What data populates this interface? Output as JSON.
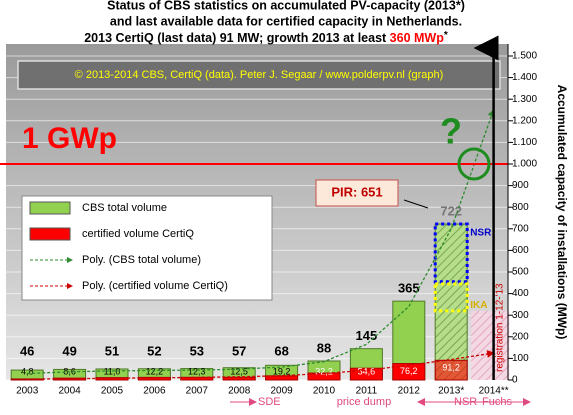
{
  "chart_data": {
    "type": "bar",
    "title_lines": [
      "Status of CBS statistics on accumulated  PV-capacity (2013*)",
      "and last available data for certified capacity in Netherlands.",
      "2013 CertiQ (last data) 91 MW; growth 2013 at least"
    ],
    "title_highlight": "360 MWp",
    "title_suffix": "*",
    "credit": "© 2013-2014 CBS, CertiQ (data). Peter J. Segaar / www.polderpv.nl (graph)",
    "y_label": "Accumulated capacity of installations (MWp)",
    "categories": [
      "2003",
      "2004",
      "2005",
      "2006",
      "2007",
      "2008",
      "2009",
      "2010",
      "2011",
      "2012",
      "2013*",
      "2014**"
    ],
    "series": [
      {
        "name": "CBS total volume",
        "color": "#92d050",
        "values": [
          46,
          49,
          51,
          52,
          53,
          57,
          68,
          88,
          145,
          365,
          722,
          null
        ]
      },
      {
        "name": "certified volume CertiQ",
        "color": "#ff0000",
        "values": [
          4.8,
          8.6,
          11.0,
          12.2,
          12.3,
          12.5,
          19.2,
          32.2,
          54.6,
          76.2,
          91.2,
          null
        ],
        "value_labels": [
          "4,8",
          "8,6",
          "11,0",
          "12,2",
          "12,3",
          "12,5",
          "19,2",
          "32,2",
          "54,6",
          "76,2",
          "91,2",
          null
        ]
      }
    ],
    "trends": [
      {
        "name": "Poly. (CBS total volume)",
        "color": "#2e8b2e",
        "values": [
          30,
          38,
          42,
          44,
          46,
          50,
          60,
          85,
          165,
          340,
          700,
          1250
        ]
      },
      {
        "name": "Poly. (certified volume CertiQ)",
        "color": "#cc0000",
        "values": [
          4,
          6,
          8,
          10,
          12,
          15,
          20,
          30,
          45,
          68,
          95,
          125
        ]
      }
    ],
    "ylim": [
      0,
      1500
    ],
    "yticks": [
      0,
      100,
      200,
      300,
      400,
      500,
      600,
      700,
      800,
      900,
      {
        "value": 1000,
        "label": "1.000"
      },
      {
        "value": 1100,
        "label": "1.100"
      },
      {
        "value": 1200,
        "label": "1.200"
      },
      {
        "value": 1300,
        "label": "1.300"
      },
      {
        "value": 1400,
        "label": "1.400"
      },
      {
        "value": 1500,
        "label": "1.500"
      }
    ],
    "grid": true,
    "reference_line": {
      "value": 1000,
      "label": "1 GWp",
      "color": "#ff0000"
    },
    "nsr_range": [
      455,
      722
    ],
    "ika_range": [
      320,
      445
    ],
    "annotations": {
      "question": "?",
      "pir": "PIR: 651",
      "nsr_box": "NSR",
      "ika_box": "IKA",
      "registration": "registration 1-12-'13",
      "sde": "SDE",
      "price_dump": "price dump",
      "nsr": "NSR",
      "fuchs": "Fuchs"
    }
  }
}
